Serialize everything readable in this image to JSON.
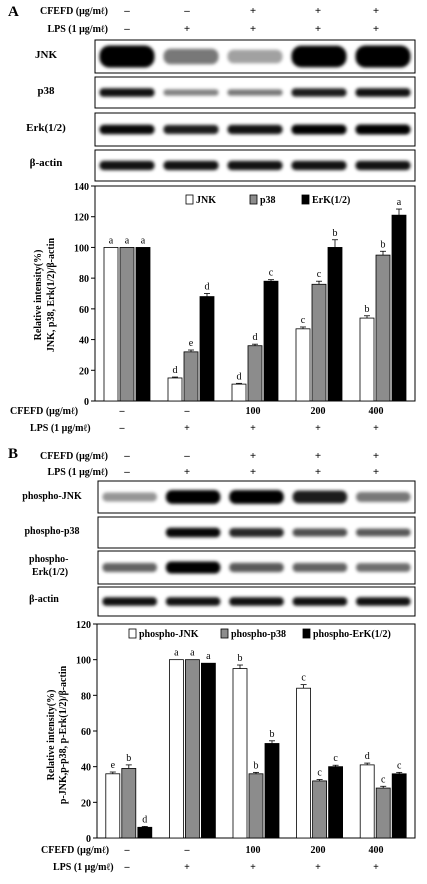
{
  "panel_a": {
    "letter": "A",
    "treat_header": [
      {
        "label": "CFEFD (μg/mℓ)",
        "values": [
          "–",
          "–",
          "+",
          "+",
          "+"
        ]
      },
      {
        "label": "LPS (1 μg/mℓ)",
        "values": [
          "–",
          "+",
          "+",
          "+",
          "+"
        ]
      }
    ],
    "blots": [
      "JNK",
      "p38",
      "Erk(1/2)",
      "β-actin"
    ],
    "x_rows": [
      {
        "label": "CFEFD (μg/mℓ)",
        "values": [
          "–",
          "–",
          "100",
          "200",
          "400"
        ]
      },
      {
        "label": "LPS (1 μg/mℓ)",
        "values": [
          "–",
          "+",
          "+",
          "+",
          "+"
        ]
      }
    ]
  },
  "panel_b": {
    "letter": "B",
    "treat_header": [
      {
        "label": "CFEFD (μg/mℓ)",
        "values": [
          "–",
          "–",
          "+",
          "+",
          "+"
        ]
      },
      {
        "label": "LPS (1 μg/mℓ)",
        "values": [
          "–",
          "+",
          "+",
          "+",
          "+"
        ]
      }
    ],
    "blots": [
      "phospho-JNK",
      "phospho-p38",
      "phospho-Erk(1/2)",
      "β-actin"
    ],
    "x_rows": [
      {
        "label": "CFEFD (μg/mℓ)",
        "values": [
          "–",
          "–",
          "100",
          "200",
          "400"
        ]
      },
      {
        "label": "LPS (1 μg/mℓ)",
        "values": [
          "–",
          "+",
          "+",
          "+",
          "+"
        ]
      }
    ]
  },
  "chart_data": [
    {
      "type": "bar",
      "title": "",
      "ylabel": "Relative intensity(%) JNK, p38, Erk(1/2)/β-actin",
      "ylim": [
        0,
        140
      ],
      "yticks": [
        0,
        20,
        40,
        60,
        80,
        100,
        120,
        140
      ],
      "categories": [
        "1",
        "2",
        "3",
        "4",
        "5"
      ],
      "series": [
        {
          "name": "JNK",
          "color": "#ffffff",
          "values": [
            100,
            15,
            11,
            47,
            54
          ],
          "errors": [
            0,
            0.6,
            0.5,
            1.2,
            1.5
          ],
          "letters": [
            "a",
            "d",
            "d",
            "c",
            "b"
          ]
        },
        {
          "name": "p38",
          "color": "#8c8c8c",
          "values": [
            100,
            32,
            36,
            76,
            95
          ],
          "errors": [
            0,
            1.2,
            1,
            2,
            2.5
          ],
          "letters": [
            "a",
            "e",
            "d",
            "c",
            "b"
          ]
        },
        {
          "name": "ErK(1/2)",
          "color": "#000000",
          "values": [
            100,
            68,
            78,
            100,
            121
          ],
          "errors": [
            0,
            2,
            1,
            5,
            4
          ],
          "letters": [
            "a",
            "d",
            "c",
            "b",
            "a"
          ]
        }
      ],
      "legend_position": "top"
    },
    {
      "type": "bar",
      "title": "",
      "ylabel": "Relative intensity(%) p-JNK,p-p38, p-Erk(1/2)/β-actin",
      "ylim": [
        0,
        120
      ],
      "yticks": [
        0,
        20,
        40,
        60,
        80,
        100,
        120
      ],
      "categories": [
        "1",
        "2",
        "3",
        "4",
        "5"
      ],
      "series": [
        {
          "name": "phospho-JNK",
          "color": "#ffffff",
          "values": [
            36,
            100,
            95,
            84,
            41
          ],
          "errors": [
            1,
            0,
            2,
            2,
            1
          ],
          "letters": [
            "e",
            "a",
            "b",
            "c",
            "d"
          ]
        },
        {
          "name": "phospho-p38",
          "color": "#8c8c8c",
          "values": [
            39,
            100,
            36,
            32,
            28
          ],
          "errors": [
            2,
            0,
            0.8,
            0.8,
            1
          ],
          "letters": [
            "b",
            "a",
            "b",
            "c",
            "c"
          ]
        },
        {
          "name": "phospho-ErK(1/2)",
          "color": "#000000",
          "values": [
            6,
            98,
            53,
            40,
            36
          ],
          "errors": [
            0.5,
            0,
            1.5,
            0.8,
            0.8
          ],
          "letters": [
            "d",
            "a",
            "b",
            "c",
            "c"
          ]
        }
      ],
      "legend_position": "top"
    }
  ]
}
